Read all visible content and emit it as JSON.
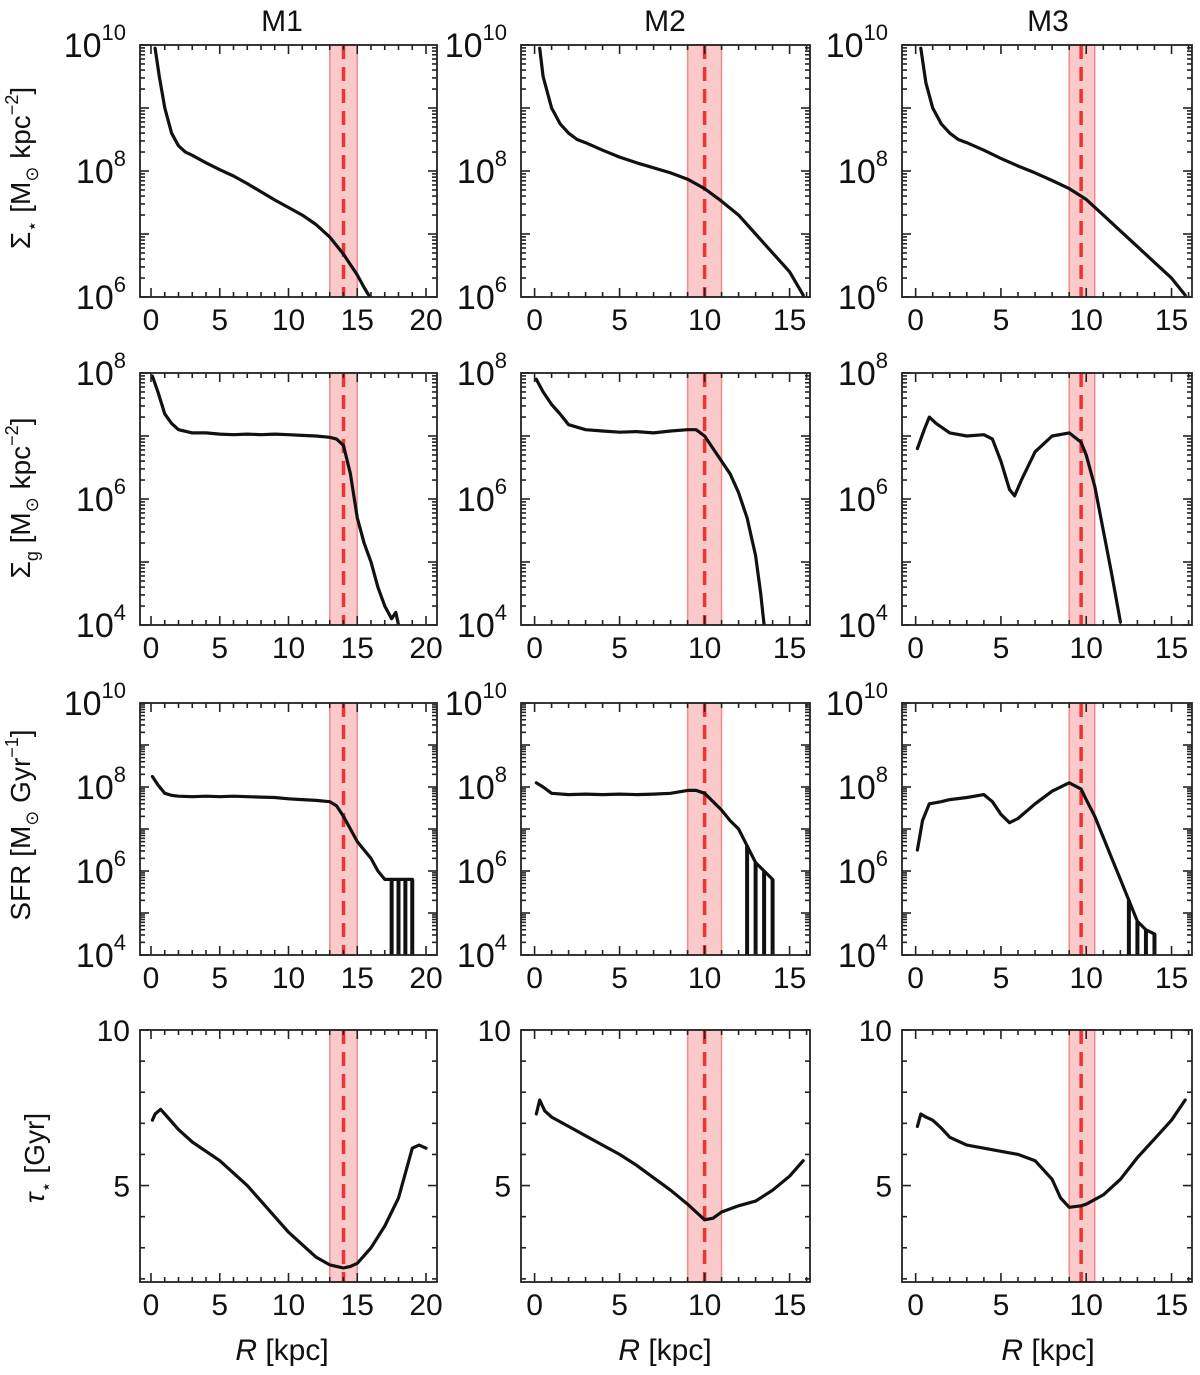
{
  "figure": {
    "columns": [
      "M1",
      "M2",
      "M3"
    ],
    "row_ylabels": [
      {
        "sym": "Σ",
        "sub": "⋆",
        "unit_pre": " [M",
        "unit_sub": "⊙",
        "unit_mid": " kpc",
        "unit_sup": "−2",
        "unit_post": "]"
      },
      {
        "sym": "Σ",
        "sub": "g",
        "unit_pre": " [M",
        "unit_sub": "⊙",
        "unit_mid": " kpc",
        "unit_sup": "−2",
        "unit_post": "]"
      },
      {
        "sym": "SFR",
        "sub": "",
        "unit_pre": " [M",
        "unit_sub": "⊙",
        "unit_mid": " Gyr",
        "unit_sup": "−1",
        "unit_post": "]"
      },
      {
        "sym": "τ",
        "sub": "⋆",
        "unit_pre": " [Gyr]",
        "unit_sub": "",
        "unit_mid": "",
        "unit_sup": "",
        "unit_post": ""
      }
    ],
    "xlabel": {
      "var": "R",
      "unit": " [kpc]"
    }
  },
  "chart_data": [
    {
      "id": "M1-sigma-star",
      "type": "line",
      "title": "M1",
      "xlabel": "",
      "ylabel": "Σ⋆ [M⊙ kpc−2]",
      "yscale": "log",
      "xlim": [
        -0.8,
        20.8
      ],
      "ylim": [
        1000000.0,
        10000000000.0
      ],
      "xticks": [
        0,
        5,
        10,
        15,
        20
      ],
      "yticks": [
        6,
        8,
        10
      ],
      "band": [
        13,
        15
      ],
      "vline": 14,
      "x": [
        0.3,
        0.6,
        1.0,
        1.5,
        2,
        2.5,
        3,
        4,
        5,
        6,
        7,
        8,
        9,
        10,
        11,
        12,
        13,
        14,
        15,
        15.5,
        16
      ],
      "y": [
        9.95,
        9.5,
        9.0,
        8.6,
        8.4,
        8.3,
        8.25,
        8.13,
        8.02,
        7.92,
        7.8,
        7.67,
        7.54,
        7.42,
        7.3,
        7.15,
        6.95,
        6.68,
        6.35,
        6.15,
        5.97
      ],
      "y_is_log10": true
    },
    {
      "id": "M2-sigma-star",
      "type": "line",
      "title": "M2",
      "xlabel": "",
      "ylabel": "",
      "yscale": "log",
      "xlim": [
        -0.8,
        16.2
      ],
      "ylim": [
        1000000.0,
        10000000000.0
      ],
      "xticks": [
        0,
        5,
        10,
        15
      ],
      "yticks": [
        6,
        8,
        10
      ],
      "band": [
        9,
        11
      ],
      "vline": 10,
      "x": [
        0.3,
        0.5,
        1.0,
        1.5,
        2,
        2.5,
        3,
        4,
        5,
        6,
        7,
        8,
        9,
        10,
        11,
        12,
        13,
        14,
        15,
        15.8
      ],
      "y": [
        9.95,
        9.5,
        9.0,
        8.75,
        8.6,
        8.5,
        8.45,
        8.33,
        8.22,
        8.13,
        8.05,
        7.97,
        7.87,
        7.72,
        7.52,
        7.3,
        7.0,
        6.7,
        6.4,
        6.03
      ],
      "y_is_log10": true
    },
    {
      "id": "M3-sigma-star",
      "type": "line",
      "title": "M3",
      "xlabel": "",
      "ylabel": "",
      "yscale": "log",
      "xlim": [
        -0.8,
        16.2
      ],
      "ylim": [
        1000000.0,
        10000000000.0
      ],
      "xticks": [
        0,
        5,
        10,
        15
      ],
      "yticks": [
        6,
        8,
        10
      ],
      "band": [
        9,
        10.5
      ],
      "vline": 9.7,
      "x": [
        0.3,
        0.6,
        1.0,
        1.5,
        2,
        2.5,
        3,
        4,
        5,
        6,
        7,
        8,
        9,
        10,
        11,
        12,
        13,
        14,
        15,
        15.8
      ],
      "y": [
        9.95,
        9.4,
        9.0,
        8.75,
        8.6,
        8.5,
        8.45,
        8.33,
        8.2,
        8.08,
        7.97,
        7.85,
        7.72,
        7.55,
        7.3,
        7.05,
        6.8,
        6.55,
        6.3,
        6.03
      ],
      "y_is_log10": true
    },
    {
      "id": "M1-sigma-gas",
      "type": "line",
      "title": "",
      "xlabel": "",
      "ylabel": "Σg [M⊙ kpc−2]",
      "yscale": "log",
      "xlim": [
        -0.8,
        20.8
      ],
      "ylim": [
        10000.0,
        100000000.0
      ],
      "xticks": [
        0,
        5,
        10,
        15,
        20
      ],
      "yticks": [
        4,
        6,
        8
      ],
      "band": [
        13,
        15
      ],
      "vline": 14,
      "x": [
        0.1,
        0.5,
        1,
        1.5,
        2,
        3,
        4,
        5,
        6,
        7,
        8,
        9,
        10,
        11,
        12,
        13,
        13.5,
        14,
        14.5,
        15,
        15.5,
        16,
        16.5,
        17,
        17.5,
        17.8,
        18
      ],
      "y": [
        7.95,
        7.7,
        7.35,
        7.2,
        7.1,
        7.05,
        7.05,
        7.03,
        7.02,
        7.03,
        7.02,
        7.03,
        7.02,
        7.01,
        7.0,
        6.98,
        6.95,
        6.85,
        6.4,
        5.7,
        5.3,
        5.0,
        4.6,
        4.3,
        4.1,
        4.2,
        4.0
      ],
      "y_is_log10": true
    },
    {
      "id": "M2-sigma-gas",
      "type": "line",
      "title": "",
      "xlabel": "",
      "ylabel": "",
      "yscale": "log",
      "xlim": [
        -0.8,
        16.2
      ],
      "ylim": [
        10000.0,
        100000000.0
      ],
      "xticks": [
        0,
        5,
        10,
        15
      ],
      "yticks": [
        4,
        6,
        8
      ],
      "band": [
        9,
        11
      ],
      "vline": 10,
      "x": [
        0.1,
        0.5,
        1,
        1.5,
        2,
        3,
        4,
        5,
        6,
        7,
        8,
        9,
        9.5,
        10,
        10.5,
        11,
        11.5,
        12,
        12.5,
        13,
        13.3,
        13.5
      ],
      "y": [
        7.9,
        7.7,
        7.5,
        7.35,
        7.18,
        7.1,
        7.08,
        7.06,
        7.07,
        7.05,
        7.08,
        7.1,
        7.1,
        7.0,
        6.8,
        6.6,
        6.4,
        6.1,
        5.7,
        5.1,
        4.5,
        4.0
      ],
      "y_is_log10": true
    },
    {
      "id": "M3-sigma-gas",
      "type": "line",
      "title": "",
      "xlabel": "",
      "ylabel": "",
      "yscale": "log",
      "xlim": [
        -0.8,
        16.2
      ],
      "ylim": [
        10000.0,
        100000000.0
      ],
      "xticks": [
        0,
        5,
        10,
        15
      ],
      "yticks": [
        4,
        6,
        8
      ],
      "band": [
        9,
        10.5
      ],
      "vline": 9.7,
      "x": [
        0.1,
        0.5,
        0.8,
        1.2,
        2,
        3,
        4,
        4.5,
        5,
        5.5,
        5.8,
        6.2,
        7,
        8,
        9,
        9.7,
        10,
        10.5,
        11,
        11.5,
        12
      ],
      "y": [
        6.8,
        7.1,
        7.3,
        7.2,
        7.05,
        7.0,
        7.02,
        6.95,
        6.6,
        6.15,
        6.05,
        6.3,
        6.75,
        7.0,
        7.05,
        6.9,
        6.7,
        6.2,
        5.5,
        4.8,
        4.05
      ],
      "y_is_log10": true
    },
    {
      "id": "M1-sfr",
      "type": "line",
      "title": "",
      "xlabel": "",
      "ylabel": "SFR [M⊙ Gyr−1]",
      "yscale": "log",
      "xlim": [
        -0.8,
        20.8
      ],
      "ylim": [
        10000.0,
        10000000000.0
      ],
      "xticks": [
        0,
        5,
        10,
        15,
        20
      ],
      "yticks": [
        4,
        6,
        8,
        10
      ],
      "band": [
        13,
        15
      ],
      "vline": 14,
      "x": [
        0.1,
        0.5,
        1,
        1.5,
        2,
        3,
        4,
        5,
        6,
        7,
        8,
        9,
        10,
        11,
        12,
        13,
        13.5,
        14,
        14.5,
        15,
        15.5,
        16,
        16.5,
        17,
        17.5,
        18,
        18.5,
        19
      ],
      "y": [
        8.25,
        8.05,
        7.85,
        7.8,
        7.78,
        7.77,
        7.78,
        7.77,
        7.78,
        7.77,
        7.76,
        7.75,
        7.72,
        7.7,
        7.68,
        7.65,
        7.55,
        7.3,
        7.0,
        6.7,
        6.5,
        6.3,
        6.0,
        5.8,
        5.8,
        5.8,
        5.8,
        5.8
      ],
      "y_is_log10": true
    },
    {
      "id": "M2-sfr",
      "type": "line",
      "title": "",
      "xlabel": "",
      "ylabel": "",
      "yscale": "log",
      "xlim": [
        -0.8,
        16.2
      ],
      "ylim": [
        10000.0,
        10000000000.0
      ],
      "xticks": [
        0,
        5,
        10,
        15
      ],
      "yticks": [
        4,
        6,
        8,
        10
      ],
      "band": [
        9,
        11
      ],
      "vline": 10,
      "x": [
        0.1,
        0.5,
        1,
        2,
        3,
        4,
        5,
        6,
        7,
        8,
        9,
        9.5,
        10,
        10.5,
        11,
        11.5,
        12,
        12.5,
        13,
        13.5,
        14
      ],
      "y": [
        8.1,
        8.0,
        7.85,
        7.82,
        7.83,
        7.82,
        7.83,
        7.82,
        7.83,
        7.85,
        7.92,
        7.92,
        7.85,
        7.65,
        7.45,
        7.2,
        7.0,
        6.6,
        6.2,
        6.0,
        5.8
      ],
      "y_is_log10": true
    },
    {
      "id": "M3-sfr",
      "type": "line",
      "title": "",
      "xlabel": "",
      "ylabel": "",
      "yscale": "log",
      "xlim": [
        -0.8,
        16.2
      ],
      "ylim": [
        10000.0,
        10000000000.0
      ],
      "xticks": [
        0,
        5,
        10,
        15
      ],
      "yticks": [
        4,
        6,
        8,
        10
      ],
      "band": [
        9,
        10.5
      ],
      "vline": 9.7,
      "x": [
        0.1,
        0.4,
        0.8,
        1.5,
        2,
        3,
        4,
        4.5,
        5,
        5.5,
        6,
        7,
        8,
        9,
        9.7,
        10,
        10.5,
        11,
        11.5,
        12,
        12.5,
        13,
        13.5,
        14
      ],
      "y": [
        6.5,
        7.2,
        7.6,
        7.65,
        7.7,
        7.75,
        7.82,
        7.65,
        7.35,
        7.15,
        7.25,
        7.6,
        7.9,
        8.1,
        7.95,
        7.7,
        7.3,
        6.8,
        6.3,
        5.8,
        5.3,
        4.8,
        4.6,
        4.5
      ],
      "y_is_log10": true
    },
    {
      "id": "M1-tau",
      "type": "line",
      "title": "",
      "xlabel": "R [kpc]",
      "ylabel": "τ⋆ [Gyr]",
      "yscale": "linear",
      "xlim": [
        -0.8,
        20.8
      ],
      "ylim": [
        1.9,
        10
      ],
      "xticks": [
        0,
        5,
        10,
        15,
        20
      ],
      "yticks": [
        5,
        10
      ],
      "band": [
        13,
        15
      ],
      "vline": 14,
      "x": [
        0.1,
        0.3,
        0.7,
        1,
        2,
        3,
        4,
        5,
        6,
        7,
        8,
        9,
        10,
        11,
        12,
        13,
        13.5,
        14,
        14.5,
        15,
        16,
        17,
        18,
        18.5,
        19,
        19.5,
        20
      ],
      "y": [
        7.1,
        7.3,
        7.45,
        7.3,
        6.8,
        6.4,
        6.1,
        5.8,
        5.4,
        5.0,
        4.5,
        4.0,
        3.5,
        3.1,
        2.7,
        2.45,
        2.4,
        2.35,
        2.4,
        2.5,
        3.0,
        3.7,
        4.6,
        5.4,
        6.2,
        6.3,
        6.2
      ],
      "y_is_log10": false
    },
    {
      "id": "M2-tau",
      "type": "line",
      "title": "",
      "xlabel": "R [kpc]",
      "ylabel": "",
      "yscale": "linear",
      "xlim": [
        -0.8,
        16.2
      ],
      "ylim": [
        1.9,
        10
      ],
      "xticks": [
        0,
        5,
        10,
        15
      ],
      "yticks": [
        5,
        10
      ],
      "band": [
        9,
        11
      ],
      "vline": 10,
      "x": [
        0.1,
        0.3,
        0.6,
        1,
        2,
        3,
        4,
        5,
        6,
        7,
        8,
        9,
        9.5,
        10,
        10.5,
        11,
        12,
        13,
        14,
        15,
        15.8
      ],
      "y": [
        7.3,
        7.75,
        7.4,
        7.2,
        6.9,
        6.6,
        6.3,
        6.0,
        5.65,
        5.25,
        4.85,
        4.4,
        4.15,
        3.9,
        3.95,
        4.15,
        4.35,
        4.5,
        4.85,
        5.3,
        5.8
      ],
      "y_is_log10": false
    },
    {
      "id": "M3-tau",
      "type": "line",
      "title": "",
      "xlabel": "R [kpc]",
      "ylabel": "",
      "yscale": "linear",
      "xlim": [
        -0.8,
        16.2
      ],
      "ylim": [
        1.9,
        10
      ],
      "xticks": [
        0,
        5,
        10,
        15
      ],
      "yticks": [
        5,
        10
      ],
      "band": [
        9,
        10.5
      ],
      "vline": 9.7,
      "x": [
        0.1,
        0.3,
        0.6,
        1,
        1.5,
        2,
        3,
        4,
        5,
        6,
        7,
        8,
        8.5,
        9,
        9.7,
        10,
        11,
        12,
        13,
        14,
        15,
        15.8
      ],
      "y": [
        6.9,
        7.3,
        7.2,
        7.1,
        6.85,
        6.55,
        6.3,
        6.2,
        6.1,
        6.0,
        5.8,
        5.2,
        4.6,
        4.3,
        4.35,
        4.4,
        4.7,
        5.2,
        5.9,
        6.5,
        7.1,
        7.75
      ],
      "y_is_log10": false
    }
  ]
}
